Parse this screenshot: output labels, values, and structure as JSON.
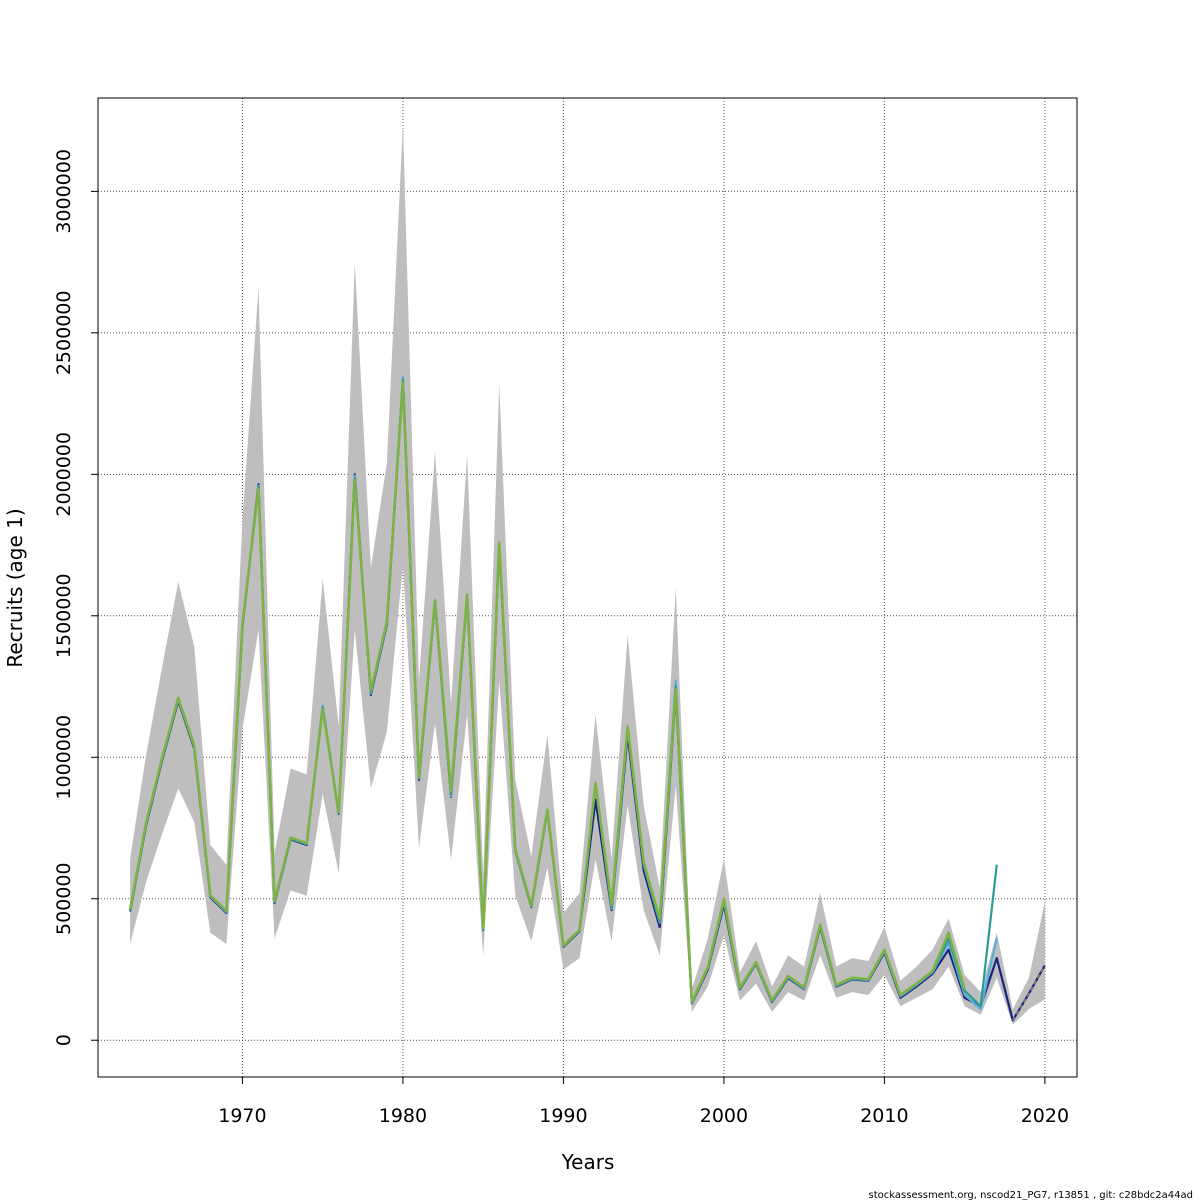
{
  "chart_data": {
    "type": "line",
    "xlabel": "Years",
    "ylabel": "Recruits (age 1)",
    "xlim": [
      1961,
      2022
    ],
    "ylim": [
      -130000,
      3330000
    ],
    "x_ticks": [
      1970,
      1980,
      1990,
      2000,
      2010,
      2020
    ],
    "y_ticks": [
      0,
      500000,
      1000000,
      1500000,
      2000000,
      2500000,
      3000000
    ],
    "grid": true,
    "legend": "none",
    "footer": "stockassessment.org, nscod21_PG7, r13851 , git: c28bdc2a44ad",
    "band_color": "#bebebe",
    "confidence_band": {
      "x": [
        1963,
        1964,
        1965,
        1966,
        1967,
        1968,
        1969,
        1970,
        1971,
        1972,
        1973,
        1974,
        1975,
        1976,
        1977,
        1978,
        1979,
        1980,
        1981,
        1982,
        1983,
        1984,
        1985,
        1986,
        1987,
        1988,
        1989,
        1990,
        1991,
        1992,
        1993,
        1994,
        1995,
        1996,
        1997,
        1998,
        1999,
        2000,
        2001,
        2002,
        2003,
        2004,
        2005,
        2006,
        2007,
        2008,
        2009,
        2010,
        2011,
        2012,
        2013,
        2014,
        2015,
        2016,
        2017,
        2018,
        2019,
        2020
      ],
      "lower": [
        340000,
        560000,
        730000,
        890000,
        770000,
        380000,
        340000,
        1100000,
        1450000,
        360000,
        530000,
        510000,
        870000,
        590000,
        1450000,
        890000,
        1090000,
        1680000,
        680000,
        1120000,
        640000,
        1150000,
        300000,
        1270000,
        510000,
        350000,
        610000,
        250000,
        290000,
        640000,
        350000,
        830000,
        460000,
        300000,
        900000,
        100000,
        190000,
        370000,
        140000,
        200000,
        100000,
        170000,
        140000,
        300000,
        150000,
        170000,
        160000,
        230000,
        120000,
        150000,
        180000,
        260000,
        120000,
        90000,
        220000,
        55000,
        110000,
        145000
      ],
      "upper": [
        640000,
        1010000,
        1320000,
        1620000,
        1390000,
        690000,
        620000,
        1840000,
        2660000,
        660000,
        960000,
        940000,
        1630000,
        1110000,
        2750000,
        1670000,
        2040000,
        3240000,
        1270000,
        2080000,
        1190000,
        2070000,
        580000,
        2320000,
        920000,
        650000,
        1080000,
        450000,
        520000,
        1150000,
        640000,
        1430000,
        830000,
        540000,
        1600000,
        180000,
        360000,
        640000,
        240000,
        350000,
        190000,
        300000,
        260000,
        520000,
        260000,
        290000,
        280000,
        400000,
        210000,
        260000,
        320000,
        430000,
        230000,
        170000,
        380000,
        110000,
        220000,
        490000
      ]
    },
    "series": [
      {
        "color": "#1a237e",
        "x": [
          1963,
          1964,
          1965,
          1966,
          1967,
          1968,
          1969,
          1970,
          1971,
          1972,
          1973,
          1974,
          1975,
          1976,
          1977,
          1978,
          1979,
          1980,
          1981,
          1982,
          1983,
          1984,
          1985,
          1986,
          1987,
          1988,
          1989,
          1990,
          1991,
          1992,
          1993,
          1994,
          1995,
          1996,
          1997,
          1998,
          1999,
          2000,
          2001,
          2002,
          2003,
          2004,
          2005,
          2006,
          2007,
          2008,
          2009,
          2010,
          2011,
          2012,
          2013,
          2014,
          2015,
          2016,
          2017,
          2018,
          2019,
          2020
        ],
        "values": [
          455000,
          760000,
          990000,
          1200000,
          1030000,
          505000,
          450000,
          1460000,
          1965000,
          485000,
          710000,
          690000,
          1180000,
          800000,
          2000000,
          1220000,
          1470000,
          2330000,
          920000,
          1550000,
          860000,
          1570000,
          390000,
          1750000,
          670000,
          470000,
          810000,
          330000,
          385000,
          850000,
          460000,
          1080000,
          600000,
          400000,
          1230000,
          130000,
          250000,
          480000,
          180000,
          270000,
          135000,
          220000,
          180000,
          400000,
          190000,
          215000,
          210000,
          310000,
          150000,
          190000,
          235000,
          320000,
          150000,
          120000,
          290000,
          70000,
          165000,
          265000
        ]
      },
      {
        "color": "#5aaed9",
        "x": [
          1963,
          1964,
          1965,
          1966,
          1967,
          1968,
          1969,
          1970,
          1971,
          1972,
          1973,
          1974,
          1975,
          1976,
          1977,
          1978,
          1979,
          1980,
          1981,
          1982,
          1983,
          1984,
          1985,
          1986,
          1987,
          1988,
          1989,
          1990,
          1991,
          1992,
          1993,
          1994,
          1995,
          1996,
          1997,
          1998,
          1999,
          2000,
          2001,
          2002,
          2003,
          2004,
          2005,
          2006,
          2007,
          2008,
          2009,
          2010,
          2011,
          2012,
          2013,
          2014,
          2015,
          2016,
          2017
        ],
        "values": [
          458000,
          765000,
          995000,
          1205000,
          1035000,
          508000,
          453000,
          1465000,
          1960000,
          488000,
          712000,
          693000,
          1182000,
          802000,
          1995000,
          1225000,
          1475000,
          2345000,
          925000,
          1552000,
          862000,
          1572000,
          392000,
          1755000,
          672000,
          472000,
          812000,
          332000,
          387000,
          905000,
          465000,
          1100000,
          620000,
          415000,
          1270000,
          132000,
          255000,
          490000,
          182000,
          272000,
          137000,
          223000,
          182000,
          405000,
          192000,
          217000,
          212000,
          315000,
          155000,
          195000,
          240000,
          345000,
          160000,
          110000,
          360000
        ]
      },
      {
        "color": "#2a9d8f",
        "x": [
          1963,
          1964,
          1965,
          1966,
          1967,
          1968,
          1969,
          1970,
          1971,
          1972,
          1973,
          1974,
          1975,
          1976,
          1977,
          1978,
          1979,
          1980,
          1981,
          1982,
          1983,
          1984,
          1985,
          1986,
          1987,
          1988,
          1989,
          1990,
          1991,
          1992,
          1993,
          1994,
          1995,
          1996,
          1997,
          1998,
          1999,
          2000,
          2001,
          2002,
          2003,
          2004,
          2005,
          2006,
          2007,
          2008,
          2009,
          2010,
          2011,
          2012,
          2013,
          2014,
          2015,
          2016,
          2017
        ],
        "values": [
          460000,
          768000,
          998000,
          1208000,
          1038000,
          510000,
          455000,
          1468000,
          1955000,
          490000,
          714000,
          695000,
          1175000,
          803000,
          1985000,
          1230000,
          1478000,
          2335000,
          928000,
          1553000,
          870000,
          1573000,
          393000,
          1758000,
          673000,
          473000,
          813000,
          333000,
          388000,
          905000,
          470000,
          1105000,
          625000,
          420000,
          1250000,
          134000,
          257000,
          495000,
          184000,
          274000,
          139000,
          225000,
          184000,
          407000,
          194000,
          219000,
          214000,
          318000,
          158000,
          198000,
          243000,
          360000,
          175000,
          120000,
          620000
        ]
      },
      {
        "color": "#7cb342",
        "x": [
          1963,
          1964,
          1965,
          1966,
          1967,
          1968,
          1969,
          1970,
          1971,
          1972,
          1973,
          1974,
          1975,
          1976,
          1977,
          1978,
          1979,
          1980,
          1981,
          1982,
          1983,
          1984,
          1985,
          1986,
          1987,
          1988,
          1989,
          1990,
          1991,
          1992,
          1993,
          1994,
          1995,
          1996,
          1997,
          1998,
          1999,
          2000,
          2001,
          2002,
          2003,
          2004,
          2005,
          2006,
          2007,
          2008,
          2009,
          2010,
          2011,
          2012,
          2013,
          2014,
          2015
        ],
        "values": [
          462000,
          770000,
          1000000,
          1210000,
          1040000,
          512000,
          457000,
          1470000,
          1950000,
          492000,
          716000,
          697000,
          1170000,
          805000,
          1980000,
          1235000,
          1480000,
          2325000,
          930000,
          1555000,
          880000,
          1575000,
          395000,
          1760000,
          675000,
          475000,
          815000,
          335000,
          390000,
          910000,
          480000,
          1110000,
          630000,
          430000,
          1240000,
          136000,
          259000,
          500000,
          186000,
          276000,
          141000,
          227000,
          186000,
          409000,
          196000,
          221000,
          216000,
          320000,
          160000,
          200000,
          245000,
          380000,
          180000
        ]
      }
    ]
  }
}
